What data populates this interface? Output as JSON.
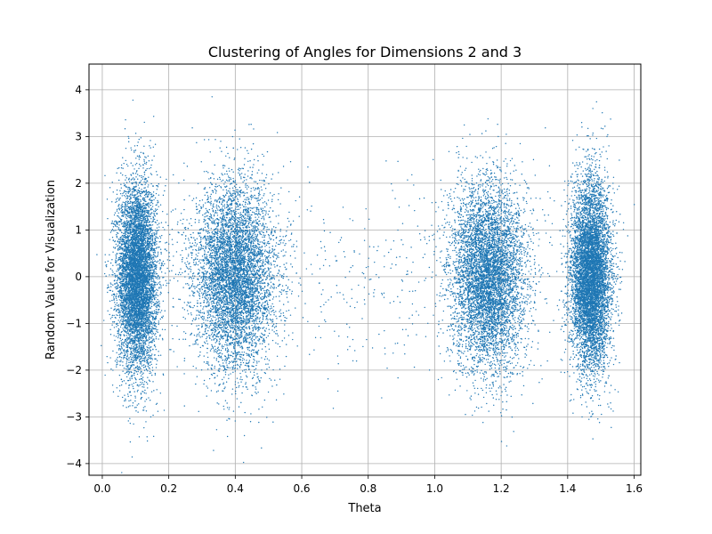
{
  "chart_data": {
    "type": "scatter",
    "title": "Clustering of Angles for Dimensions 2 and 3",
    "xlabel": "Theta",
    "ylabel": "Random Value for Visualization",
    "xlim": [
      -0.04,
      1.62
    ],
    "ylim": [
      -4.25,
      4.55
    ],
    "x_ticks": [
      0.0,
      0.2,
      0.4,
      0.6,
      0.8,
      1.0,
      1.2,
      1.4,
      1.6
    ],
    "x_tick_labels": [
      "0.0",
      "0.2",
      "0.4",
      "0.6",
      "0.8",
      "1.0",
      "1.2",
      "1.4",
      "1.6"
    ],
    "y_ticks": [
      -4,
      -3,
      -2,
      -1,
      0,
      1,
      2,
      3,
      4
    ],
    "y_tick_labels": [
      "−4",
      "−3",
      "−2",
      "−1",
      "0",
      "1",
      "2",
      "3",
      "4"
    ],
    "grid": true,
    "legend": "none",
    "marker_color": "#1f77b4",
    "series": [
      {
        "clusters": [
          {
            "theta_center": 0.105,
            "theta_spread": 0.03,
            "y_center": 0.0,
            "y_spread": 1.0,
            "approx_points": 7000
          },
          {
            "theta_center": 0.4,
            "theta_spread": 0.06,
            "y_center": 0.0,
            "y_spread": 1.0,
            "approx_points": 6000
          },
          {
            "theta_center": 1.16,
            "theta_spread": 0.055,
            "y_center": 0.0,
            "y_spread": 1.0,
            "approx_points": 6000
          },
          {
            "theta_center": 1.47,
            "theta_spread": 0.03,
            "y_center": 0.0,
            "y_spread": 1.0,
            "approx_points": 7000
          }
        ],
        "background": {
          "theta_range": [
            0.2,
            1.35
          ],
          "y_spread": 1.0,
          "approx_points": 600
        }
      }
    ]
  }
}
